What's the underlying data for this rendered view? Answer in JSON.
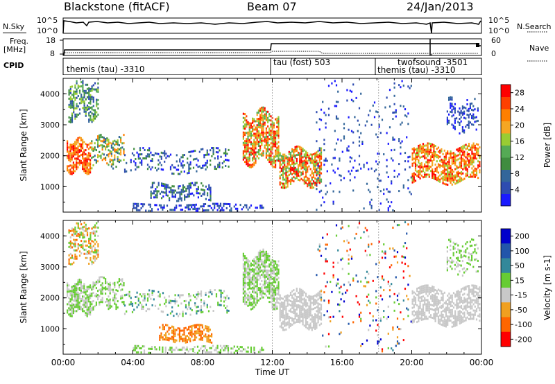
{
  "header": {
    "site": "Blackstone (fitACF)",
    "beam": "Beam 07",
    "date": "24/Jan/2013"
  },
  "top_panels": {
    "nsky_label": "N.Sky",
    "nsky_ticks": [
      "10^5",
      "10^0"
    ],
    "nsearch_label": "N.Search",
    "nsearch_ticks": [
      "10^5",
      "10^0"
    ],
    "freq_label_1": "Freq.",
    "freq_label_2": "[MHz]",
    "freq_ticks": [
      "18",
      "8"
    ],
    "nave_label": "Nave",
    "nave_ticks": [
      "60",
      "0"
    ],
    "cpid_label": "CPID",
    "cpid_segments": [
      {
        "name": "themis (tau)",
        "id": "-3310"
      },
      {
        "name": "tau (fost)",
        "id": "503"
      },
      {
        "name": "twofsound",
        "id": "-3501"
      },
      {
        "name": "themis (tau)",
        "id": "-3310"
      }
    ]
  },
  "colors": {
    "power": [
      "#1a1aff",
      "#2e4cb0",
      "#33669a",
      "#3f8c3f",
      "#55aa55",
      "#99cc33",
      "#f5a623",
      "#ff7f00",
      "#ff4000",
      "#ff0000"
    ],
    "velocity": [
      "#0000cc",
      "#2255aa",
      "#33889a",
      "#66cc33",
      "#c8c8c8",
      "#f0a020",
      "#ff6600",
      "#ff0000"
    ]
  },
  "chart_data": [
    {
      "type": "heatmap",
      "panel": "power",
      "ylabel": "Slant Range [km]",
      "yticks": [
        "1000",
        "2000",
        "3000",
        "4000"
      ],
      "ylim": [
        180,
        4500
      ],
      "xlim": [
        0,
        24
      ],
      "colorbar_label": "Power [dB]",
      "colorbar_ticks": [
        "4",
        "8",
        "12",
        "16",
        "20",
        "24",
        "28"
      ],
      "colorbar_range": [
        0,
        30
      ],
      "scatter_regions": [
        {
          "t": [
            0.2,
            1.6
          ],
          "r": [
            1500,
            2500
          ],
          "levels": [
            6,
            9
          ],
          "density": 0.75
        },
        {
          "t": [
            0.3,
            2.0
          ],
          "r": [
            3200,
            4400
          ],
          "levels": [
            1,
            5
          ],
          "density": 0.5
        },
        {
          "t": [
            1.6,
            3.5
          ],
          "r": [
            1700,
            2600
          ],
          "levels": [
            2,
            7
          ],
          "density": 0.45
        },
        {
          "t": [
            3.5,
            9.5
          ],
          "r": [
            1500,
            2200
          ],
          "levels": [
            0,
            3
          ],
          "density": 0.25
        },
        {
          "t": [
            5.0,
            8.5
          ],
          "r": [
            600,
            1100
          ],
          "levels": [
            0,
            3
          ],
          "density": 0.5
        },
        {
          "t": [
            4.0,
            11.5
          ],
          "r": [
            200,
            450
          ],
          "levels": [
            0,
            2
          ],
          "density": 0.4
        },
        {
          "t": [
            10.3,
            12.4
          ],
          "r": [
            1800,
            3400
          ],
          "levels": [
            4,
            9
          ],
          "density": 0.7
        },
        {
          "t": [
            12.4,
            14.8
          ],
          "r": [
            1100,
            2200
          ],
          "levels": [
            4,
            9
          ],
          "density": 0.7
        },
        {
          "t": [
            14.5,
            20.0
          ],
          "r": [
            300,
            4400
          ],
          "levels": [
            0,
            2
          ],
          "density": 0.06
        },
        {
          "t": [
            20.0,
            23.9
          ],
          "r": [
            1200,
            2300
          ],
          "levels": [
            5,
            9
          ],
          "density": 0.65
        },
        {
          "t": [
            22.0,
            23.8
          ],
          "r": [
            2800,
            3800
          ],
          "levels": [
            0,
            2
          ],
          "density": 0.3
        }
      ]
    },
    {
      "type": "heatmap",
      "panel": "velocity",
      "ylabel": "Slant Range [km]",
      "yticks": [
        "1000",
        "2000",
        "3000",
        "4000"
      ],
      "ylim": [
        180,
        4500
      ],
      "xlim": [
        0,
        24
      ],
      "xticks": [
        "00:00",
        "04:00",
        "08:00",
        "12:00",
        "16:00",
        "20:00",
        "00:00"
      ],
      "xlabel": "Time UT",
      "colorbar_label": "Velocity [m s-1]",
      "colorbar_ticks": [
        "200",
        "100",
        "50",
        "15",
        "-15",
        "-50",
        "-100",
        "-200"
      ],
      "scatter_regions": [
        {
          "t": [
            0.2,
            1.6
          ],
          "r": [
            1500,
            2500
          ],
          "levels": [
            3,
            4
          ],
          "density": 0.75
        },
        {
          "t": [
            0.3,
            2.0
          ],
          "r": [
            3200,
            4400
          ],
          "levels": [
            3,
            6
          ],
          "density": 0.5
        },
        {
          "t": [
            1.6,
            3.5
          ],
          "r": [
            1700,
            2600
          ],
          "levels": [
            3,
            4
          ],
          "density": 0.45
        },
        {
          "t": [
            3.5,
            9.5
          ],
          "r": [
            1500,
            2200
          ],
          "levels": [
            2,
            4
          ],
          "density": 0.25
        },
        {
          "t": [
            5.5,
            8.5
          ],
          "r": [
            600,
            1100
          ],
          "levels": [
            5,
            6
          ],
          "density": 0.6
        },
        {
          "t": [
            4.0,
            11.5
          ],
          "r": [
            200,
            450
          ],
          "levels": [
            3,
            4
          ],
          "density": 0.4
        },
        {
          "t": [
            10.3,
            12.4
          ],
          "r": [
            1800,
            3400
          ],
          "levels": [
            3,
            4
          ],
          "density": 0.7
        },
        {
          "t": [
            12.4,
            14.8
          ],
          "r": [
            1100,
            2200
          ],
          "levels": [
            4,
            4
          ],
          "density": 0.7
        },
        {
          "t": [
            14.5,
            20.0
          ],
          "r": [
            300,
            4400
          ],
          "levels": [
            0,
            7
          ],
          "density": 0.06
        },
        {
          "t": [
            20.0,
            23.9
          ],
          "r": [
            1200,
            2300
          ],
          "levels": [
            4,
            4
          ],
          "density": 0.65
        },
        {
          "t": [
            22.0,
            23.8
          ],
          "r": [
            2800,
            3800
          ],
          "levels": [
            3,
            4
          ],
          "density": 0.3
        }
      ]
    }
  ]
}
